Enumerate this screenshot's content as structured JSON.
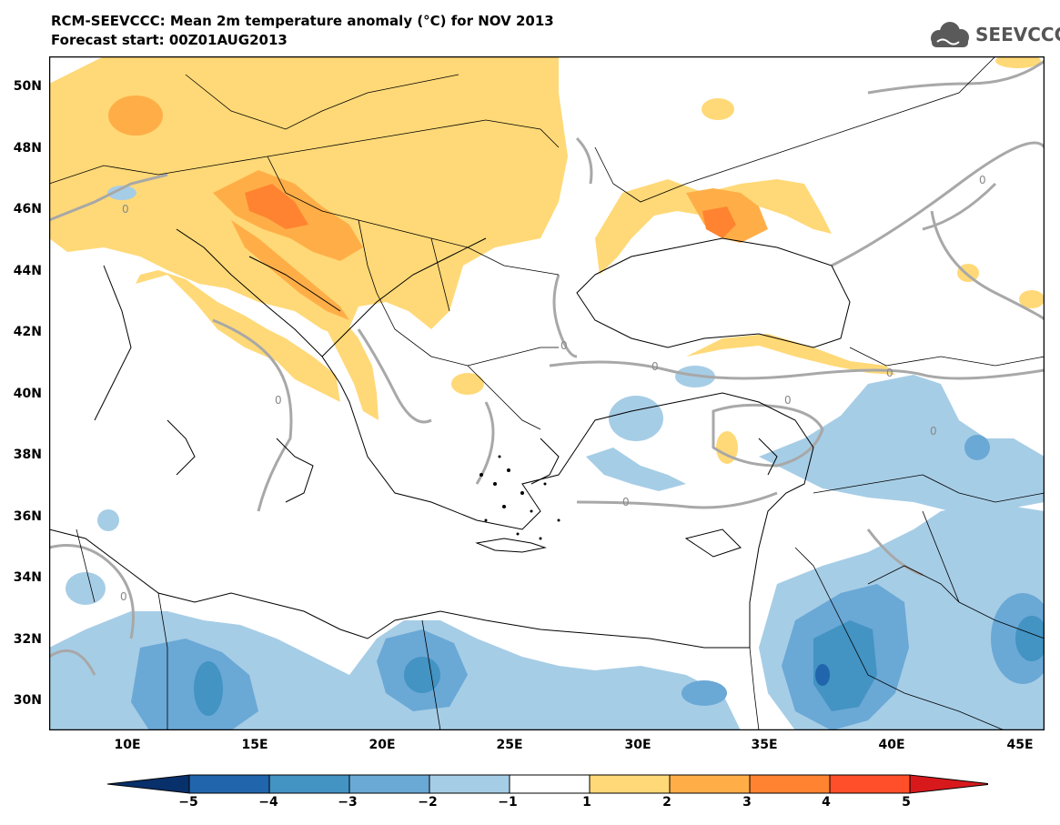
{
  "header": {
    "title": "RCM-SEEVCCC: Mean 2m temperature anomaly (°C) for NOV 2013",
    "subtitle": "Forecast start: 00Z01AUG2013",
    "logo_text": "SEEVCCC"
  },
  "map": {
    "lat_labels": [
      "50N",
      "48N",
      "46N",
      "44N",
      "42N",
      "40N",
      "38N",
      "36N",
      "34N",
      "32N",
      "30N"
    ],
    "lon_labels": [
      "10E",
      "15E",
      "20E",
      "25E",
      "30E",
      "35E",
      "40E",
      "45E"
    ],
    "contour_label": "0"
  },
  "colorbar": {
    "labels": [
      "−5",
      "−4",
      "−3",
      "−2",
      "−1",
      "1",
      "2",
      "3",
      "4",
      "5"
    ],
    "colors": [
      "#08306b",
      "#2166ac",
      "#4393c3",
      "#6aa8d6",
      "#a6cde6",
      "#ffffff",
      "#ffd977",
      "#ffae47",
      "#ff8330",
      "#ff4f2a",
      "#d7191c"
    ]
  },
  "palette": {
    "pos1": "#ffd977",
    "pos2": "#ffae47",
    "pos3": "#ff8330",
    "pos4": "#ff4f2a",
    "neg1": "#a6cde6",
    "neg2": "#6aa8d6",
    "neg3": "#4393c3",
    "neg4": "#2166ac",
    "contour": "#a8a8a8"
  }
}
